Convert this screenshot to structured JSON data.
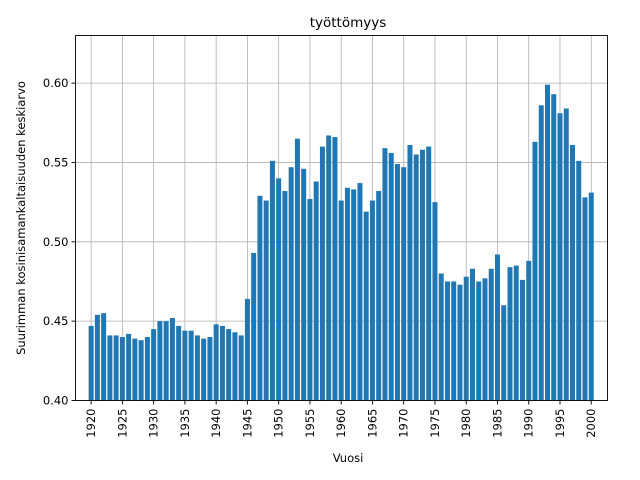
{
  "chart_data": {
    "type": "bar",
    "title": "työttömyys",
    "xlabel": "Vuosi",
    "ylabel": "Suurimman kosinisamankaltaisuuden keskiarvo",
    "color": "#1f77b4",
    "grid": true,
    "ylim": [
      0.4,
      0.63
    ],
    "xlim": [
      1917.5,
      2002.6
    ],
    "x_ticks": [
      "1920",
      "1925",
      "1930",
      "1935",
      "1940",
      "1945",
      "1950",
      "1955",
      "1960",
      "1965",
      "1970",
      "1975",
      "1980",
      "1985",
      "1990",
      "1995",
      "2000"
    ],
    "y_ticks": [
      "0.40",
      "0.45",
      "0.50",
      "0.55",
      "0.60"
    ],
    "x": [
      1920,
      1921,
      1922,
      1923,
      1924,
      1925,
      1926,
      1927,
      1928,
      1929,
      1930,
      1931,
      1932,
      1933,
      1934,
      1935,
      1936,
      1937,
      1938,
      1939,
      1940,
      1941,
      1942,
      1943,
      1944,
      1945,
      1946,
      1947,
      1948,
      1949,
      1950,
      1951,
      1952,
      1953,
      1954,
      1955,
      1956,
      1957,
      1958,
      1959,
      1960,
      1961,
      1962,
      1963,
      1964,
      1965,
      1966,
      1967,
      1968,
      1969,
      1970,
      1971,
      1972,
      1973,
      1974,
      1975,
      1976,
      1977,
      1978,
      1979,
      1980,
      1981,
      1982,
      1983,
      1984,
      1985,
      1986,
      1987,
      1988,
      1989,
      1990,
      1991,
      1992,
      1993,
      1994,
      1995,
      1996,
      1997,
      1998,
      1999,
      2000
    ],
    "values": [
      0.447,
      0.454,
      0.455,
      0.441,
      0.441,
      0.44,
      0.442,
      0.439,
      0.438,
      0.44,
      0.445,
      0.45,
      0.45,
      0.452,
      0.447,
      0.444,
      0.444,
      0.441,
      0.439,
      0.44,
      0.448,
      0.447,
      0.445,
      0.443,
      0.441,
      0.464,
      0.493,
      0.529,
      0.526,
      0.551,
      0.54,
      0.532,
      0.547,
      0.565,
      0.546,
      0.527,
      0.538,
      0.56,
      0.567,
      0.566,
      0.526,
      0.534,
      0.533,
      0.537,
      0.519,
      0.526,
      0.532,
      0.559,
      0.556,
      0.549,
      0.547,
      0.561,
      0.555,
      0.558,
      0.56,
      0.525,
      0.48,
      0.475,
      0.475,
      0.473,
      0.478,
      0.483,
      0.475,
      0.477,
      0.483,
      0.492,
      0.46,
      0.484,
      0.485,
      0.476,
      0.488,
      0.563,
      0.586,
      0.599,
      0.593,
      0.581,
      0.584,
      0.561,
      0.551,
      0.528,
      0.531
    ]
  }
}
